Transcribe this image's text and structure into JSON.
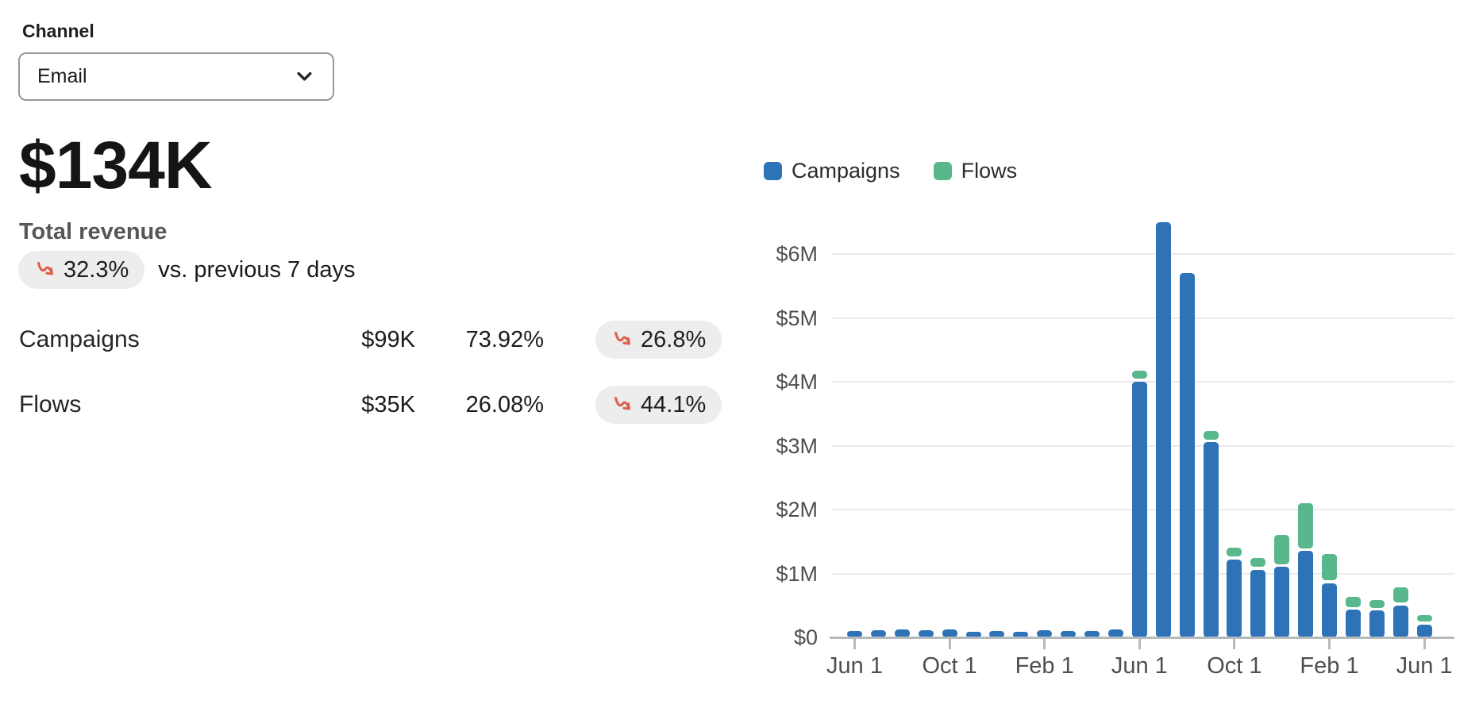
{
  "channel": {
    "label": "Channel",
    "selected": "Email"
  },
  "summary": {
    "value": "$134K",
    "label": "Total revenue",
    "trend_value": "32.3%",
    "trend_direction": "down",
    "trend_context": "vs. previous 7 days"
  },
  "breakdown": {
    "rows": [
      {
        "label": "Campaigns",
        "value": "$99K",
        "share": "73.92%",
        "trend": "26.8%",
        "trend_direction": "down"
      },
      {
        "label": "Flows",
        "value": "$35K",
        "share": "26.08%",
        "trend": "44.1%",
        "trend_direction": "down"
      }
    ]
  },
  "colors": {
    "campaigns_blue": "#2e73b8",
    "flows_green": "#58b88b",
    "trend_down_red": "#dd5f4d",
    "badge_bg": "#ededed",
    "axis_gray": "#b7babd",
    "grid_gray": "#ebebeb"
  },
  "chart_data": {
    "type": "bar",
    "stacked": true,
    "title": "",
    "unit": "USD (millions)",
    "legend": [
      {
        "name": "Campaigns",
        "color": "#2e73b8"
      },
      {
        "name": "Flows",
        "color": "#58b88b"
      }
    ],
    "x_interval": "monthly",
    "x_tick_labels": [
      "Jun 1",
      "Oct 1",
      "Feb 1",
      "Jun 1",
      "Oct 1",
      "Feb 1",
      "Jun 1"
    ],
    "x_tick_indices": [
      0,
      4,
      8,
      12,
      16,
      20,
      24
    ],
    "y_ticks": [
      "$0",
      "$1M",
      "$2M",
      "$3M",
      "$4M",
      "$5M",
      "$6M"
    ],
    "ylim": [
      0,
      6.5
    ],
    "grid": true,
    "legend_position": "top",
    "series": [
      {
        "name": "Campaigns",
        "values": [
          0.1,
          0.11,
          0.12,
          0.11,
          0.12,
          0.09,
          0.1,
          0.08,
          0.11,
          0.1,
          0.1,
          0.13,
          4.0,
          6.5,
          5.7,
          3.05,
          1.22,
          1.06,
          1.1,
          1.35,
          0.85,
          0.43,
          0.42,
          0.5,
          0.2
        ]
      },
      {
        "name": "Flows",
        "values": [
          0,
          0,
          0,
          0,
          0,
          0,
          0,
          0,
          0,
          0,
          0,
          0,
          0.18,
          0,
          0,
          0.18,
          0.18,
          0.18,
          0.5,
          0.75,
          0.45,
          0.2,
          0.17,
          0.28,
          0.15
        ]
      }
    ]
  }
}
